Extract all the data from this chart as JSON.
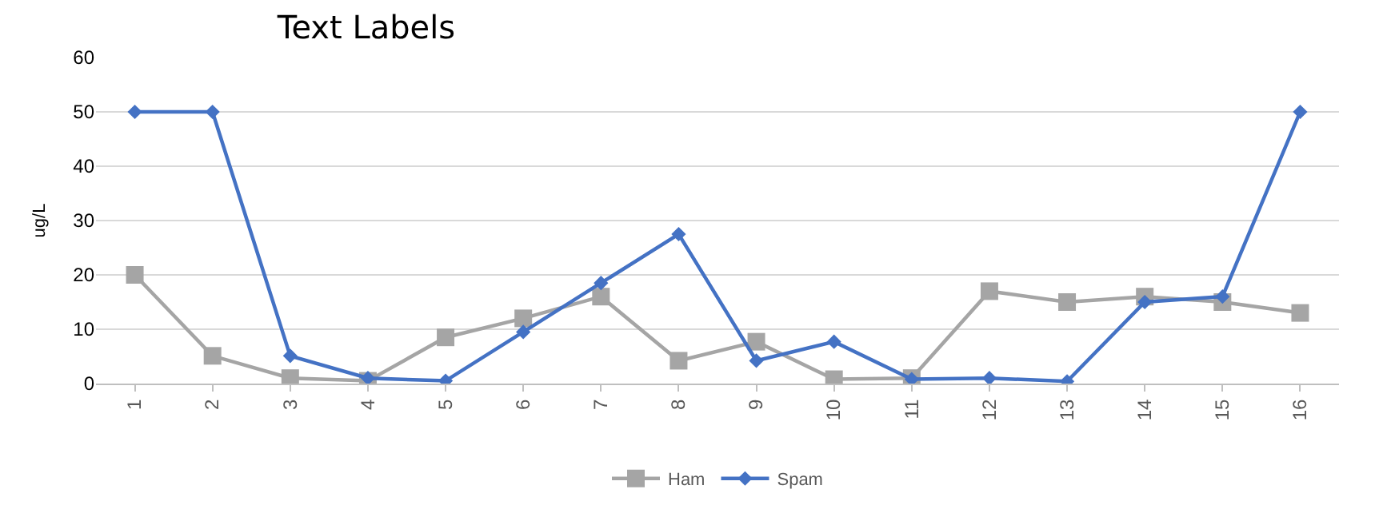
{
  "chart_data": {
    "type": "line",
    "title": "Text Labels",
    "ylabel": "ug/L",
    "categories": [
      "1",
      "2",
      "3",
      "4",
      "5",
      "6",
      "7",
      "8",
      "9",
      "10",
      "11",
      "12",
      "13",
      "14",
      "15",
      "16"
    ],
    "series": [
      {
        "name": "Ham",
        "color": "#a5a5a5",
        "marker": "square",
        "values": [
          20,
          5.1,
          1,
          0.5,
          8.5,
          12,
          16,
          4.2,
          7.7,
          0.8,
          1,
          17,
          15,
          16,
          15,
          13
        ]
      },
      {
        "name": "Spam",
        "color": "#4472c4",
        "marker": "diamond",
        "values": [
          50,
          50,
          5.1,
          1,
          0.5,
          9.5,
          18.5,
          27.5,
          4.2,
          7.7,
          0.8,
          1,
          0.4,
          15,
          16,
          50
        ]
      }
    ],
    "ylim": [
      0,
      60
    ],
    "yticks": [
      0,
      10,
      20,
      30,
      40,
      50,
      60
    ],
    "grid": "y",
    "legend": "bottom"
  }
}
